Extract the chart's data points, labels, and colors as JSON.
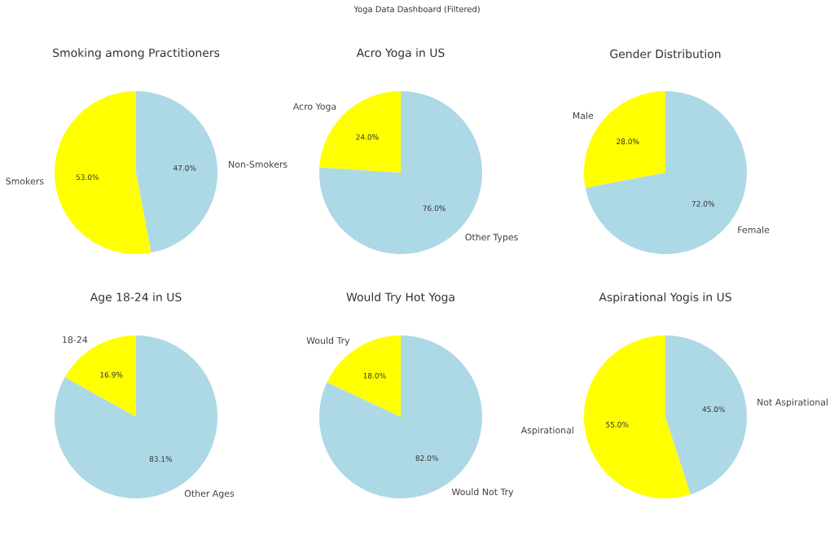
{
  "chart_data": [
    {
      "type": "pie",
      "title": "Smoking among Practitioners",
      "annotations": [
        "Yoga Data Dashboard (Filtered)"
      ],
      "categories": [
        "Smokers",
        "Non-Smokers"
      ],
      "values": [
        53,
        47
      ],
      "colors": [
        "#ffff00",
        "#add8e6"
      ],
      "value_labels": [
        "53.0%",
        "47.0%"
      ]
    },
    {
      "type": "pie",
      "title": "Acro Yoga in US",
      "categories": [
        "Acro Yoga",
        "Other Types"
      ],
      "values": [
        24,
        76
      ],
      "colors": [
        "#ffff00",
        "#add8e6"
      ],
      "value_labels": [
        "24.0%",
        "76.0%"
      ]
    },
    {
      "type": "pie",
      "title": "Gender Distribution",
      "categories": [
        "Male",
        "Female"
      ],
      "values": [
        28,
        72
      ],
      "colors": [
        "#ffff00",
        "#add8e6"
      ],
      "value_labels": [
        "28.0%",
        "72.0%"
      ]
    },
    {
      "type": "pie",
      "title": "Age 18-24 in US",
      "categories": [
        "18-24",
        "Other Ages"
      ],
      "values": [
        16.9,
        83.1
      ],
      "colors": [
        "#ffff00",
        "#add8e6"
      ],
      "value_labels": [
        "16.9%",
        "83.1%"
      ]
    },
    {
      "type": "pie",
      "title": "Would Try Hot Yoga",
      "categories": [
        "Would Try",
        "Would Not Try"
      ],
      "values": [
        18,
        82
      ],
      "colors": [
        "#ffff00",
        "#add8e6"
      ],
      "value_labels": [
        "18.0%",
        "82.0%"
      ]
    },
    {
      "type": "pie",
      "title": "Aspirational Yogis in US",
      "categories": [
        "Aspirational",
        "Not Aspirational"
      ],
      "values": [
        55,
        45
      ],
      "colors": [
        "#ffff00",
        "#add8e6"
      ],
      "value_labels": [
        "55.0%",
        "45.0%"
      ]
    }
  ]
}
